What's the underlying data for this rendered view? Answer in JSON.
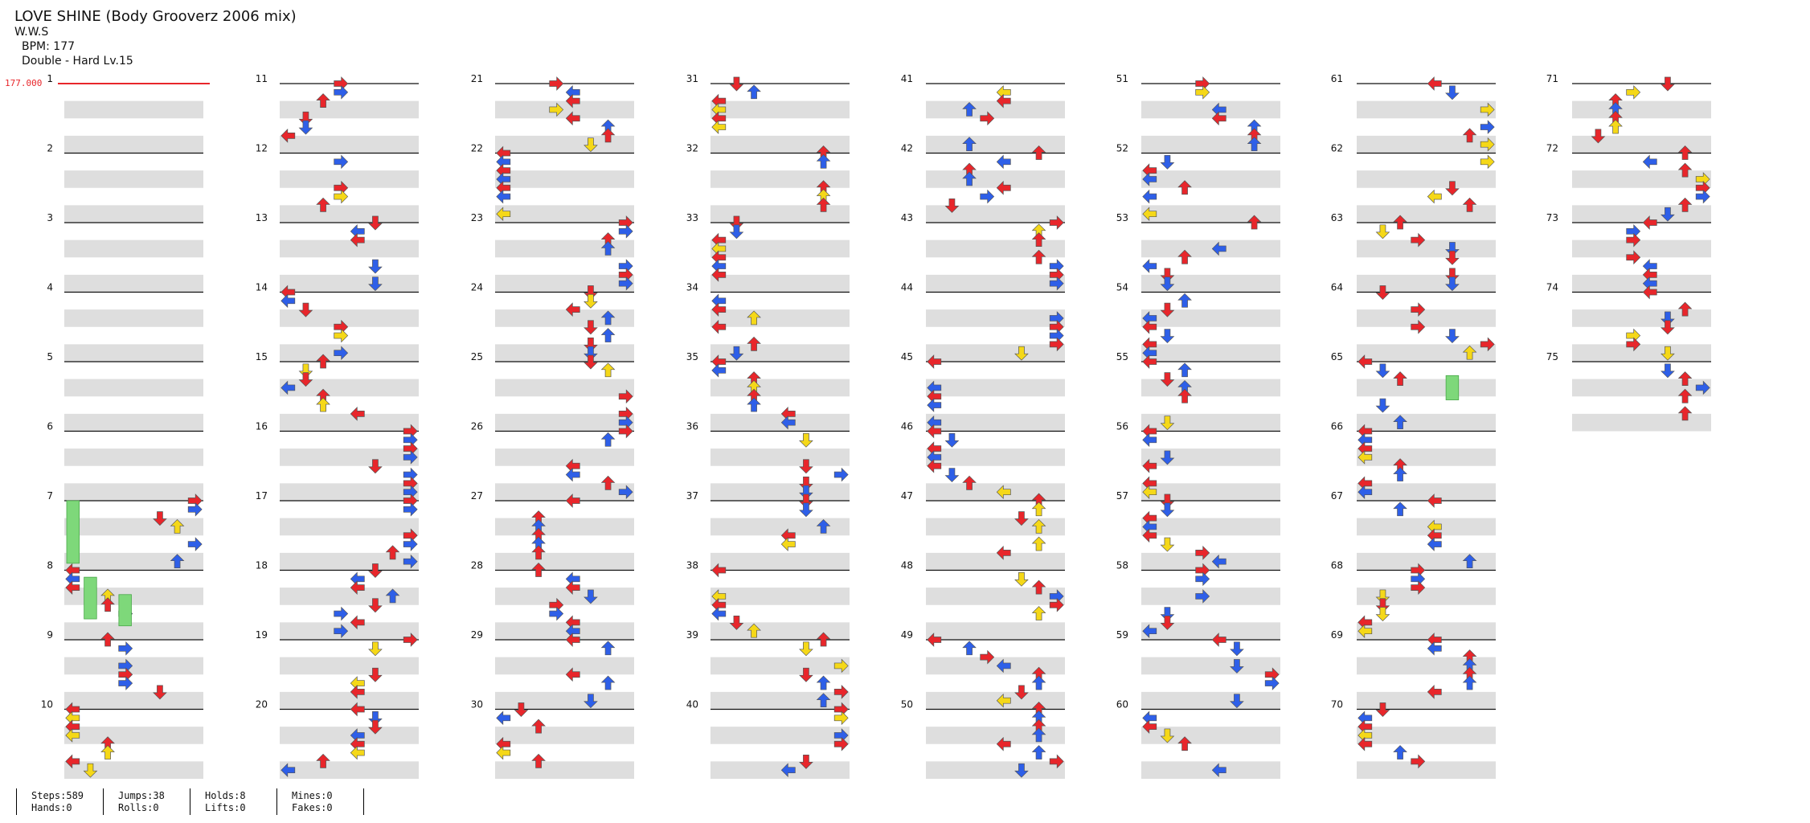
{
  "song": {
    "title": "LOVE SHINE (Body Grooverz 2006 mix)",
    "artist": "W.W.S",
    "bpm_line": "BPM: 177",
    "difficulty_line": "Double - Hard  Lv.15"
  },
  "bpm_marker": {
    "value": "177.000"
  },
  "total_measures": 75,
  "stats": {
    "steps": "Steps:589",
    "hands": "Hands:0",
    "jumps": "Jumps:38",
    "rolls": "Rolls:0",
    "holds": "Holds:8",
    "lifts": "Lifts:0",
    "mines": "Mines:0",
    "fakes": "Fakes:0"
  },
  "colors": {
    "quarter": "#e8262b",
    "eighth": "#2e5fe8",
    "sixteenth": "#f5d818",
    "hold": "#7ed87a",
    "band": "#dedede",
    "measure_line": "#111111",
    "beat_line": "#999999"
  },
  "arrow_icons": [
    "arrow-left-icon",
    "arrow-down-icon",
    "arrow-up-icon",
    "arrow-right-icon"
  ]
}
